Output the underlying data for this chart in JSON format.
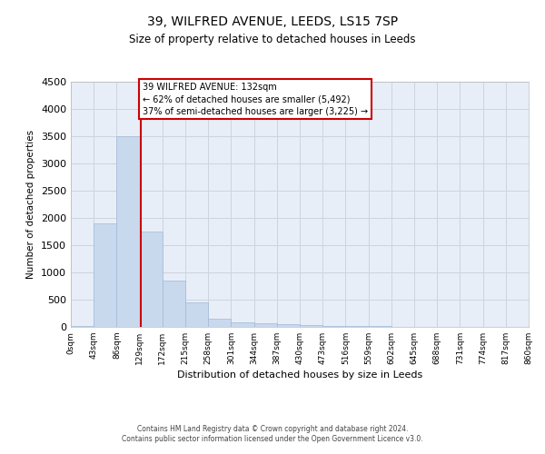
{
  "title1": "39, WILFRED AVENUE, LEEDS, LS15 7SP",
  "title2": "Size of property relative to detached houses in Leeds",
  "xlabel": "Distribution of detached houses by size in Leeds",
  "ylabel": "Number of detached properties",
  "property_size": 132,
  "annotation_line1": "39 WILFRED AVENUE: 132sqm",
  "annotation_line2": "← 62% of detached houses are smaller (5,492)",
  "annotation_line3": "37% of semi-detached houses are larger (3,225) →",
  "footer1": "Contains HM Land Registry data © Crown copyright and database right 2024.",
  "footer2": "Contains public sector information licensed under the Open Government Licence v3.0.",
  "bar_color": "#c8d9ee",
  "bar_edge_color": "#a0b8d8",
  "vline_color": "#cc0000",
  "annotation_box_edge_color": "#cc0000",
  "grid_color": "#ccd4e0",
  "background_color": "#e8eef8",
  "fig_background": "#ffffff",
  "categories": [
    "0sqm",
    "43sqm",
    "86sqm",
    "129sqm",
    "172sqm",
    "215sqm",
    "258sqm",
    "301sqm",
    "344sqm",
    "387sqm",
    "430sqm",
    "473sqm",
    "516sqm",
    "559sqm",
    "602sqm",
    "645sqm",
    "688sqm",
    "731sqm",
    "774sqm",
    "817sqm",
    "860sqm"
  ],
  "bin_edges": [
    0,
    43,
    86,
    129,
    172,
    215,
    258,
    301,
    344,
    387,
    430,
    473,
    516,
    559,
    602,
    645,
    688,
    731,
    774,
    817,
    860
  ],
  "values": [
    20,
    1900,
    3500,
    1750,
    850,
    450,
    150,
    90,
    70,
    50,
    35,
    20,
    15,
    10,
    8,
    5,
    4,
    3,
    2,
    2
  ],
  "ylim": [
    0,
    4500
  ],
  "yticks": [
    0,
    500,
    1000,
    1500,
    2000,
    2500,
    3000,
    3500,
    4000,
    4500
  ]
}
